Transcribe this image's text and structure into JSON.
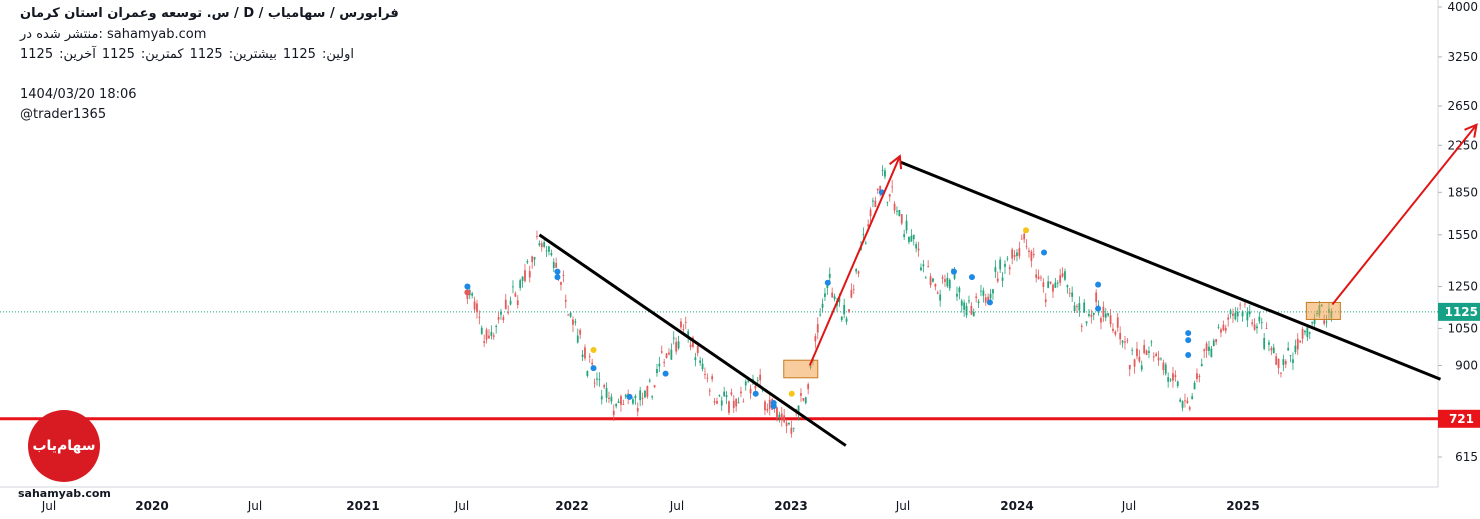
{
  "header": {
    "title": "س. توسعه وعمران استان کرمان /  D  /  فرابورس / سهامیاب",
    "published": "منتشر شده در: sahamyab.com",
    "ohlc": {
      "open_label": "اولین:",
      "open": "1125",
      "high_label": "بیشترین:",
      "high": "1125",
      "low_label": "کمترین:",
      "low": "1125",
      "close_label": "آخرین:",
      "close": "1125"
    },
    "datetime": "1404/03/20 18:06",
    "author": "@trader1365"
  },
  "watermark": {
    "site": "sahamyab.com",
    "logo_text": "سهام‌یاب"
  },
  "colors": {
    "support": "#e8141a",
    "trendline": "#000000",
    "arrow": "#e01515",
    "box": "#f3a34a",
    "last_price": "#16a085",
    "up": "#22a37a",
    "down": "#e35b5b",
    "dot_blue": "#1e88e5",
    "dot_yellow": "#f5c518"
  },
  "chart_data": {
    "type": "candlestick",
    "timeframe": "D",
    "y_scale": "log",
    "ylim": [
      560,
      4100
    ],
    "y_ticks": [
      "615",
      "900",
      "1050",
      "1250",
      "1550",
      "1850",
      "2250",
      "2650",
      "3250",
      "4000"
    ],
    "x_ticks": [
      "Jul",
      "2020",
      "Jul",
      "2021",
      "Jul",
      "2022",
      "Jul",
      "2023",
      "Jul",
      "2024",
      "Jul",
      "2025"
    ],
    "last_price": "1125",
    "support_level": "721",
    "price_path": [
      [
        "2021-06",
        1250
      ],
      [
        "2021-07",
        1000
      ],
      [
        "2021-09",
        1250
      ],
      [
        "2021-10",
        1500
      ],
      [
        "2021-11",
        1350
      ],
      [
        "2022-01",
        850
      ],
      [
        "2022-02",
        760
      ],
      [
        "2022-04",
        780
      ],
      [
        "2022-05",
        950
      ],
      [
        "2022-06",
        1050
      ],
      [
        "2022-08",
        780
      ],
      [
        "2022-09",
        760
      ],
      [
        "2022-10",
        850
      ],
      [
        "2022-11",
        740
      ],
      [
        "2022-12",
        700
      ],
      [
        "2023-01",
        850
      ],
      [
        "2023-02",
        1300
      ],
      [
        "2023-03",
        1100
      ],
      [
        "2023-04",
        1500
      ],
      [
        "2023-05",
        2000
      ],
      [
        "2023-06",
        1650
      ],
      [
        "2023-07",
        1450
      ],
      [
        "2023-08",
        1200
      ],
      [
        "2023-09",
        1300
      ],
      [
        "2023-10",
        1100
      ],
      [
        "2023-11",
        1250
      ],
      [
        "2024-01",
        1550
      ],
      [
        "2024-02",
        1200
      ],
      [
        "2024-03",
        1300
      ],
      [
        "2024-04",
        1100
      ],
      [
        "2024-05",
        1150
      ],
      [
        "2024-06",
        1050
      ],
      [
        "2024-07",
        900
      ],
      [
        "2024-08",
        1000
      ],
      [
        "2024-09",
        850
      ],
      [
        "2024-10",
        750
      ],
      [
        "2024-11",
        950
      ],
      [
        "2025-01",
        1150
      ],
      [
        "2025-02",
        1050
      ],
      [
        "2025-03",
        900
      ],
      [
        "2025-04",
        950
      ],
      [
        "2025-05",
        1100
      ],
      [
        "2025-06",
        1125
      ]
    ],
    "trendlines": [
      {
        "from": [
          "2021-10",
          1550
        ],
        "to": [
          "2023-03",
          645
        ]
      },
      {
        "from": [
          "2023-06",
          2100
        ],
        "to": [
          "2025-12",
          850
        ]
      }
    ],
    "arrows": [
      {
        "from": [
          "2023-01",
          900
        ],
        "to": [
          "2023-06",
          2150
        ]
      },
      {
        "from": [
          "2025-06",
          1160
        ],
        "to": [
          "2026-02",
          2450
        ]
      }
    ],
    "boxes": [
      {
        "from": [
          "2022-12",
          855
        ],
        "to": [
          "2023-01",
          920
        ]
      },
      {
        "from": [
          "2025-05",
          1090
        ],
        "to": [
          "2025-06",
          1170
        ]
      }
    ]
  }
}
